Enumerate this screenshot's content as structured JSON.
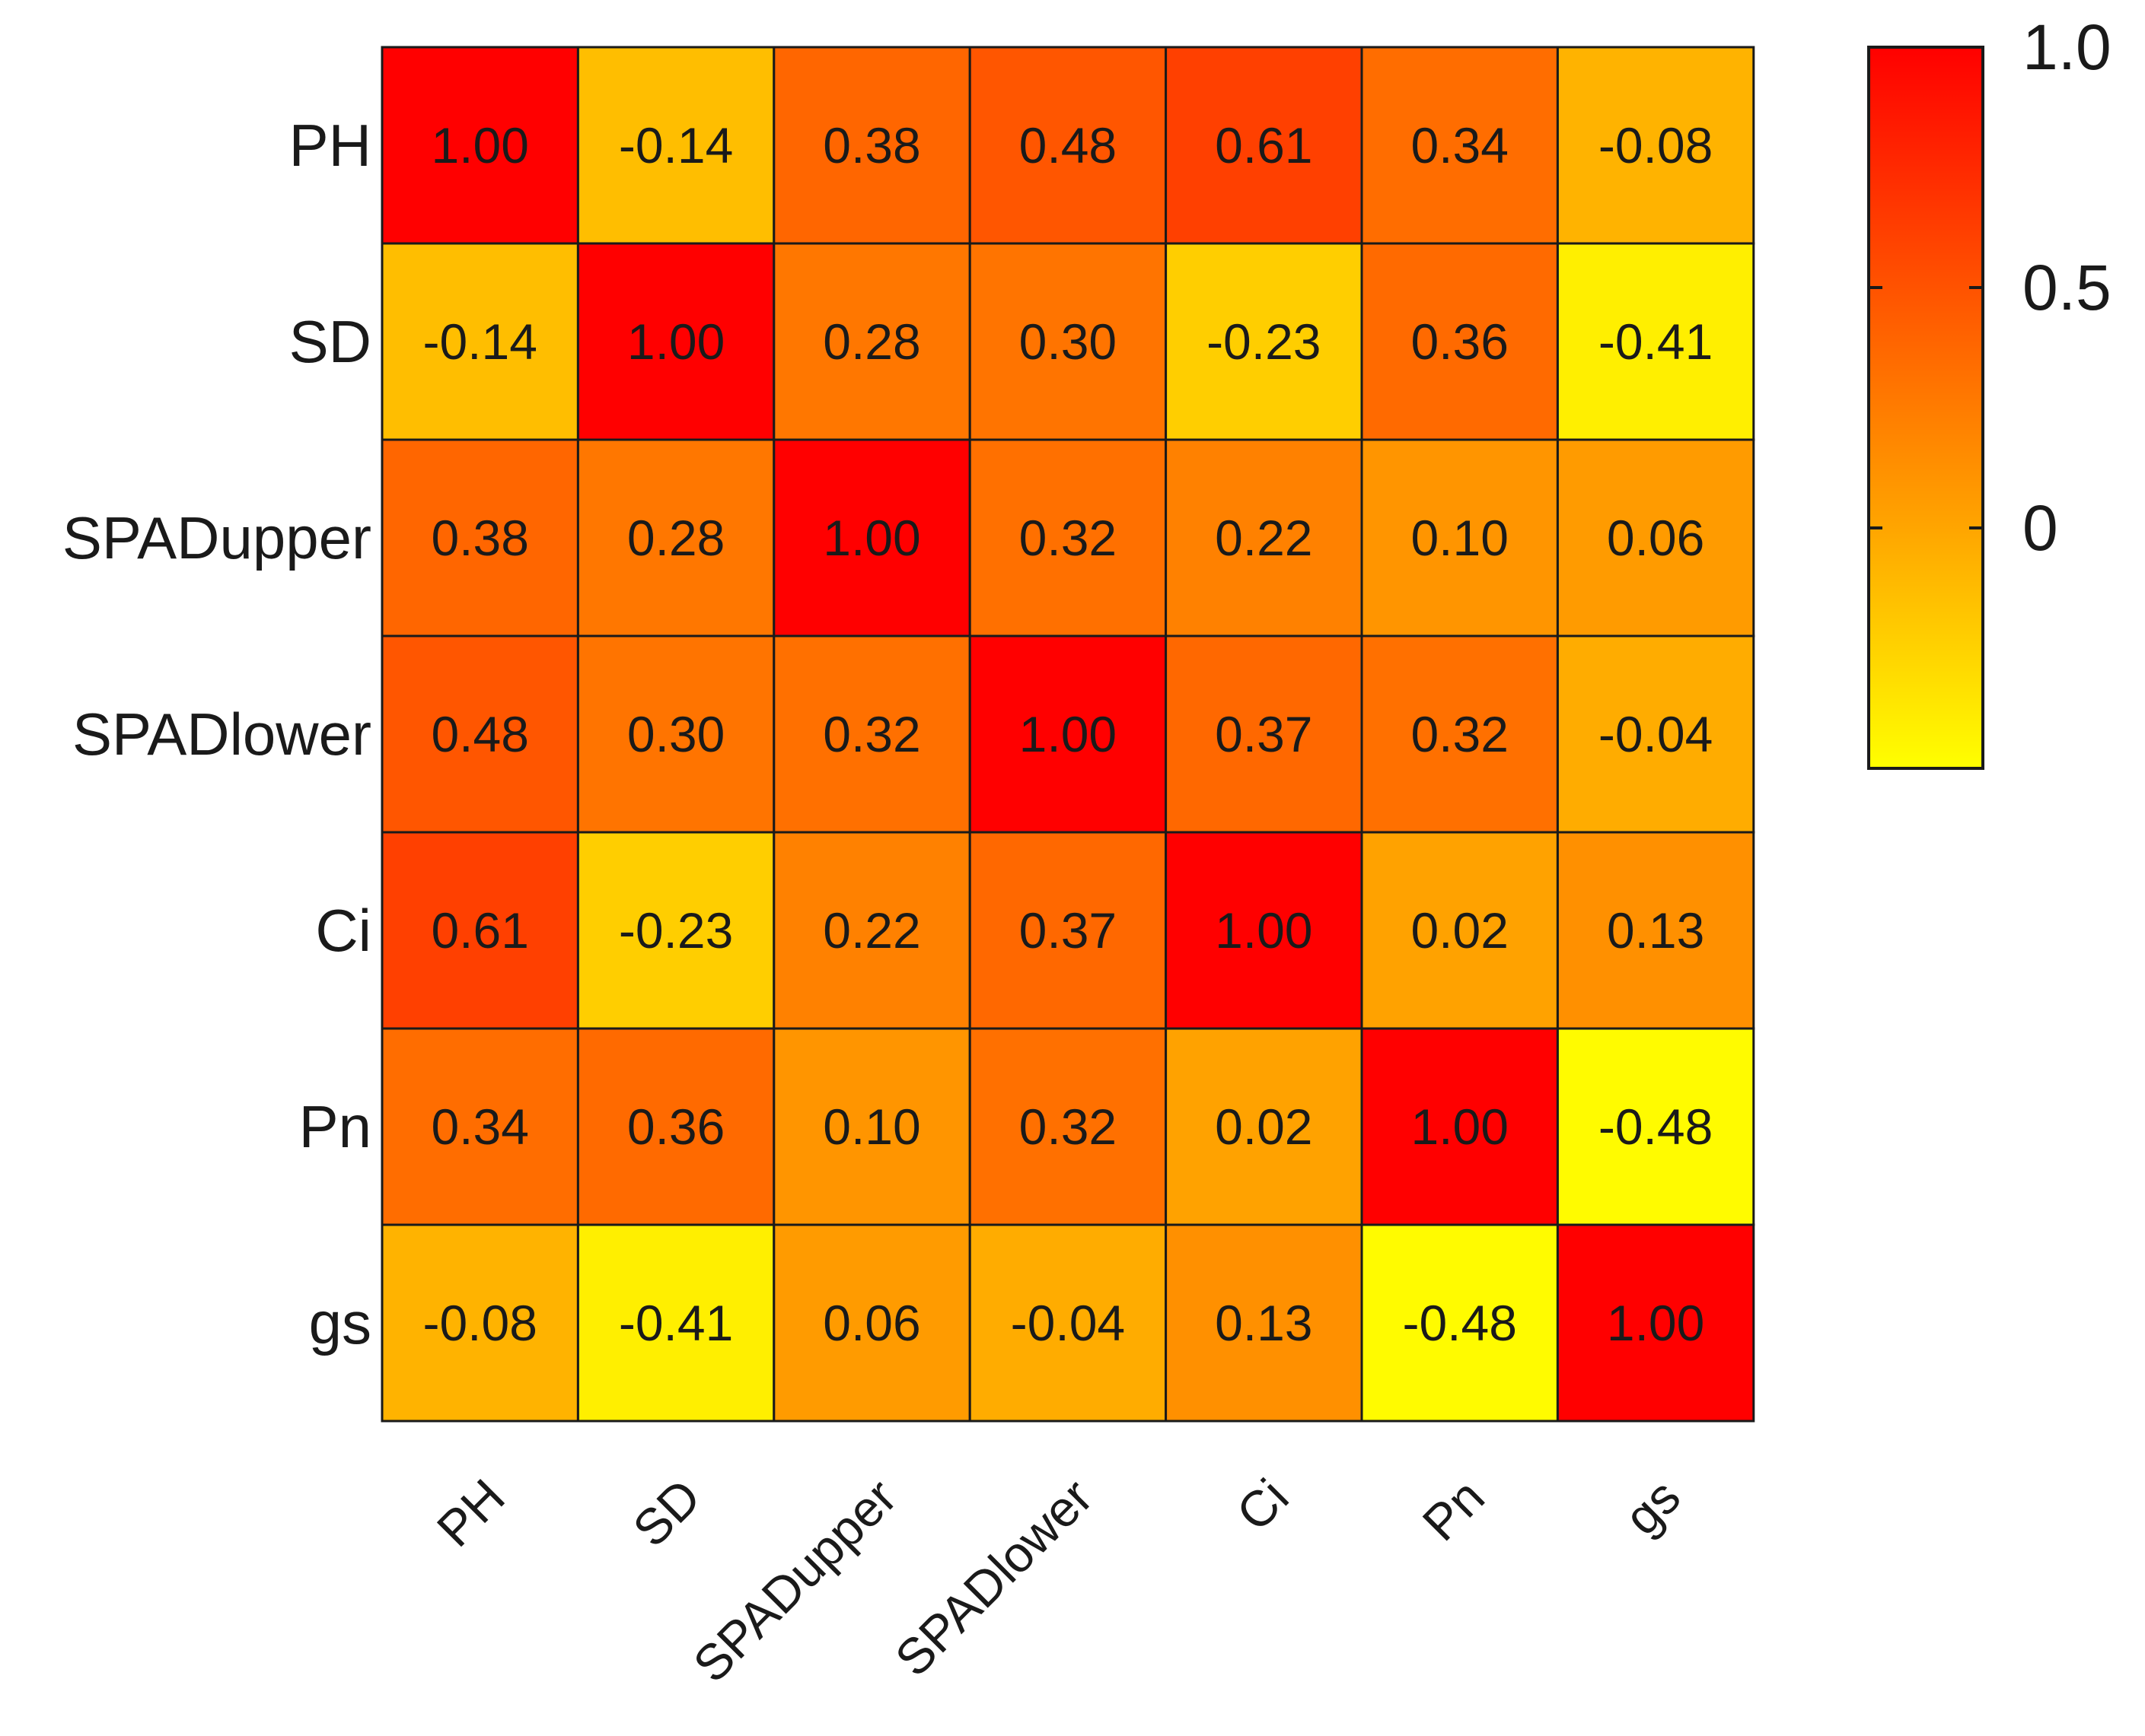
{
  "chart_data": {
    "type": "heatmap",
    "title": "",
    "xlabel": "",
    "ylabel": "",
    "rows": [
      "PH",
      "SD",
      "SPADupper",
      "SPADlower",
      "Ci",
      "Pn",
      "gs"
    ],
    "columns": [
      "PH",
      "SD",
      "SPADupper",
      "SPADlower",
      "Ci",
      "Pn",
      "gs"
    ],
    "values": [
      [
        1.0,
        -0.14,
        0.38,
        0.48,
        0.61,
        0.34,
        -0.08
      ],
      [
        -0.14,
        1.0,
        0.28,
        0.3,
        -0.23,
        0.36,
        -0.41
      ],
      [
        0.38,
        0.28,
        1.0,
        0.32,
        0.22,
        0.1,
        0.06
      ],
      [
        0.48,
        0.3,
        0.32,
        1.0,
        0.37,
        0.32,
        -0.04
      ],
      [
        0.61,
        -0.23,
        0.22,
        0.37,
        1.0,
        0.02,
        0.13
      ],
      [
        0.34,
        0.36,
        0.1,
        0.32,
        0.02,
        1.0,
        -0.48
      ],
      [
        -0.08,
        -0.41,
        0.06,
        -0.04,
        0.13,
        -0.48,
        1.0
      ]
    ],
    "value_labels": [
      [
        "1.00",
        "-0.14",
        "0.38",
        "0.48",
        "0.61",
        "0.34",
        "-0.08"
      ],
      [
        "-0.14",
        "1.00",
        "0.28",
        "0.30",
        "-0.23",
        "0.36",
        "-0.41"
      ],
      [
        "0.38",
        "0.28",
        "1.00",
        "0.32",
        "0.22",
        "0.10",
        "0.06"
      ],
      [
        "0.48",
        "0.30",
        "0.32",
        "1.00",
        "0.37",
        "0.32",
        "-0.04"
      ],
      [
        "0.61",
        "-0.23",
        "0.22",
        "0.37",
        "1.00",
        "0.02",
        "0.13"
      ],
      [
        "0.34",
        "0.36",
        "0.10",
        "0.32",
        "0.02",
        "1.00",
        "-0.48"
      ],
      [
        "-0.08",
        "-0.41",
        "0.06",
        "-0.04",
        "0.13",
        "-0.48",
        "1.00"
      ]
    ],
    "colorbar": {
      "range": [
        -0.5,
        1.0
      ],
      "ticks": [
        1.0,
        0.5,
        0
      ],
      "tick_labels": [
        "1.0",
        "0.5",
        "0"
      ],
      "colors": {
        "low": "#ffff00",
        "mid": "#ffa500",
        "high": "#ff0000"
      }
    },
    "cell_text_color": "#1a1a1a",
    "grid_color": "#1a1a1a"
  }
}
